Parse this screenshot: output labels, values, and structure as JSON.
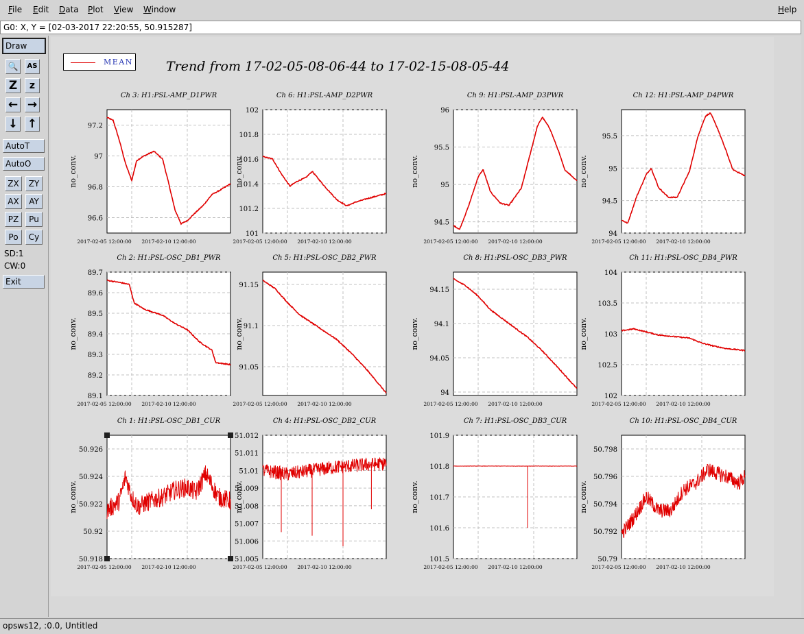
{
  "menubar": {
    "items": [
      {
        "label": "File",
        "u": "F",
        "rest": "ile"
      },
      {
        "label": "Edit",
        "u": "E",
        "rest": "dit"
      },
      {
        "label": "Data",
        "u": "D",
        "rest": "ata"
      },
      {
        "label": "Plot",
        "u": "P",
        "rest": "lot"
      },
      {
        "label": "View",
        "u": "V",
        "rest": "iew"
      },
      {
        "label": "Window",
        "u": "W",
        "rest": "indow"
      }
    ],
    "help": {
      "u": "H",
      "rest": "elp"
    }
  },
  "coord_readout": "G0: X, Y = [02-03-2017 22:20:55, 50.915287]",
  "toolbar": {
    "draw": "Draw",
    "icons": [
      "magnify-icon",
      "text-icon",
      "zoom-out-icon",
      "zoom-in-icon",
      "arrow-left-icon",
      "arrow-right-icon",
      "arrow-down-icon",
      "arrow-up-icon"
    ],
    "icon_glyphs": [
      "🔍",
      "AS",
      "Z",
      "z",
      "←",
      "→",
      "↓",
      "↑"
    ],
    "autot": "AutoT",
    "autoo": "AutoO",
    "pairs": [
      [
        "ZX",
        "ZY"
      ],
      [
        "AX",
        "AY"
      ],
      [
        "PZ",
        "Pu"
      ],
      [
        "Po",
        "Cy"
      ]
    ],
    "sd": "SD:1",
    "cw": "CW:0",
    "exit": "Exit"
  },
  "legend": {
    "label": "MEAN",
    "color": "#e00000"
  },
  "title": "Trend from 17-02-05-08-06-44 to 17-02-15-08-05-44",
  "status": "opsws12, :0.0, Untitled",
  "chart_data": [
    {
      "type": "line",
      "title": "Ch 3: H1:PSL-AMP_D1PWR",
      "ylabel": "no_conv.",
      "ylim": [
        96.5,
        97.3
      ],
      "yticks": [
        "96.6",
        "96.8",
        "97",
        "97.2"
      ],
      "ytick_values": [
        96.6,
        96.8,
        97,
        97.2
      ],
      "xticks": [
        "2017-02-05 12:00:00",
        "2017-02-10 12:00:00"
      ],
      "series": [
        {
          "values": [
            [
              0,
              97.25
            ],
            [
              0.05,
              97.23
            ],
            [
              0.1,
              97.1
            ],
            [
              0.15,
              96.95
            ],
            [
              0.2,
              96.84
            ],
            [
              0.24,
              96.97
            ],
            [
              0.3,
              97.0
            ],
            [
              0.38,
              97.03
            ],
            [
              0.45,
              96.98
            ],
            [
              0.5,
              96.82
            ],
            [
              0.55,
              96.65
            ],
            [
              0.6,
              96.56
            ],
            [
              0.65,
              96.58
            ],
            [
              0.7,
              96.62
            ],
            [
              0.78,
              96.68
            ],
            [
              0.85,
              96.75
            ],
            [
              0.92,
              96.78
            ],
            [
              1,
              96.82
            ]
          ]
        }
      ]
    },
    {
      "type": "line",
      "title": "Ch 6: H1:PSL-AMP_D2PWR",
      "ylabel": "no_conv.",
      "ylim": [
        101,
        102
      ],
      "yticks": [
        "101",
        "101.2",
        "101.4",
        "101.6",
        "101.8",
        "102"
      ],
      "ytick_values": [
        101,
        101.2,
        101.4,
        101.6,
        101.8,
        102
      ],
      "xticks": [
        "2017-02-05 12:00:00",
        "2017-02-10 12:00:00"
      ],
      "series": [
        {
          "values": [
            [
              0,
              101.62
            ],
            [
              0.08,
              101.6
            ],
            [
              0.15,
              101.48
            ],
            [
              0.22,
              101.38
            ],
            [
              0.28,
              101.42
            ],
            [
              0.35,
              101.45
            ],
            [
              0.4,
              101.5
            ],
            [
              0.5,
              101.38
            ],
            [
              0.6,
              101.27
            ],
            [
              0.68,
              101.22
            ],
            [
              0.75,
              101.25
            ],
            [
              0.85,
              101.28
            ],
            [
              1,
              101.32
            ]
          ]
        }
      ]
    },
    {
      "type": "line",
      "title": "Ch 9: H1:PSL-AMP_D3PWR",
      "ylabel": "no_conv.",
      "ylim": [
        94.35,
        96
      ],
      "yticks": [
        "94.5",
        "95",
        "95.5",
        "96"
      ],
      "ytick_values": [
        94.5,
        95,
        95.5,
        96
      ],
      "xticks": [
        "2017-02-05 12:00:00",
        "2017-02-10 12:00:00"
      ],
      "series": [
        {
          "values": [
            [
              0,
              94.45
            ],
            [
              0.05,
              94.4
            ],
            [
              0.12,
              94.7
            ],
            [
              0.2,
              95.1
            ],
            [
              0.24,
              95.2
            ],
            [
              0.3,
              94.9
            ],
            [
              0.38,
              94.75
            ],
            [
              0.45,
              94.72
            ],
            [
              0.55,
              94.95
            ],
            [
              0.62,
              95.4
            ],
            [
              0.68,
              95.78
            ],
            [
              0.72,
              95.9
            ],
            [
              0.78,
              95.75
            ],
            [
              0.85,
              95.45
            ],
            [
              0.9,
              95.2
            ],
            [
              1,
              95.05
            ]
          ]
        }
      ]
    },
    {
      "type": "line",
      "title": "Ch 12: H1:PSL-AMP_D4PWR",
      "ylabel": "no_conv.",
      "ylim": [
        94,
        95.9
      ],
      "yticks": [
        "94",
        "94.5",
        "95",
        "95.5"
      ],
      "ytick_values": [
        94,
        94.5,
        95,
        95.5
      ],
      "xticks": [
        "2017-02-05 12:00:00",
        "2017-02-10 12:00:00"
      ],
      "series": [
        {
          "values": [
            [
              0,
              94.2
            ],
            [
              0.05,
              94.15
            ],
            [
              0.12,
              94.55
            ],
            [
              0.2,
              94.9
            ],
            [
              0.24,
              95.0
            ],
            [
              0.3,
              94.7
            ],
            [
              0.38,
              94.55
            ],
            [
              0.45,
              94.55
            ],
            [
              0.55,
              94.95
            ],
            [
              0.62,
              95.5
            ],
            [
              0.68,
              95.8
            ],
            [
              0.72,
              95.85
            ],
            [
              0.78,
              95.6
            ],
            [
              0.85,
              95.25
            ],
            [
              0.9,
              94.98
            ],
            [
              1,
              94.88
            ]
          ]
        }
      ]
    },
    {
      "type": "line",
      "title": "Ch 2: H1:PSL-OSC_DB1_PWR",
      "ylabel": "no_conv.",
      "ylim": [
        89.1,
        89.7
      ],
      "yticks": [
        "89.1",
        "89.2",
        "89.3",
        "89.4",
        "89.5",
        "89.6",
        "89.7"
      ],
      "ytick_values": [
        89.1,
        89.2,
        89.3,
        89.4,
        89.5,
        89.6,
        89.7
      ],
      "xticks": [
        "2017-02-05 12:00:00",
        "2017-02-10 12:00:00"
      ],
      "series": [
        {
          "values": [
            [
              0,
              89.66
            ],
            [
              0.1,
              89.65
            ],
            [
              0.18,
              89.64
            ],
            [
              0.22,
              89.55
            ],
            [
              0.3,
              89.52
            ],
            [
              0.45,
              89.49
            ],
            [
              0.55,
              89.45
            ],
            [
              0.65,
              89.42
            ],
            [
              0.75,
              89.36
            ],
            [
              0.85,
              89.32
            ],
            [
              0.88,
              89.26
            ],
            [
              1,
              89.25
            ]
          ]
        }
      ]
    },
    {
      "type": "line",
      "title": "Ch 5: H1:PSL-OSC_DB2_PWR",
      "ylabel": "no_conv.",
      "ylim": [
        91.015,
        91.165
      ],
      "yticks": [
        "91.05",
        "91.1",
        "91.15"
      ],
      "ytick_values": [
        91.05,
        91.1,
        91.15
      ],
      "xticks": [
        "2017-02-05 12:00:00",
        "2017-02-10 12:00:00"
      ],
      "series": [
        {
          "values": [
            [
              0,
              91.155
            ],
            [
              0.1,
              91.145
            ],
            [
              0.2,
              91.128
            ],
            [
              0.3,
              91.113
            ],
            [
              0.45,
              91.098
            ],
            [
              0.6,
              91.083
            ],
            [
              0.72,
              91.066
            ],
            [
              0.85,
              91.045
            ],
            [
              0.95,
              91.027
            ],
            [
              1,
              91.018
            ]
          ]
        }
      ]
    },
    {
      "type": "line",
      "title": "Ch 8: H1:PSL-OSC_DB3_PWR",
      "ylabel": "no_conv.",
      "ylim": [
        93.995,
        94.175
      ],
      "yticks": [
        "94",
        "94.05",
        "94.1",
        "94.15"
      ],
      "ytick_values": [
        94,
        94.05,
        94.1,
        94.15
      ],
      "xticks": [
        "2017-02-05 12:00:00",
        "2017-02-10 12:00:00"
      ],
      "series": [
        {
          "values": [
            [
              0,
              94.165
            ],
            [
              0.1,
              94.155
            ],
            [
              0.2,
              94.14
            ],
            [
              0.3,
              94.12
            ],
            [
              0.45,
              94.1
            ],
            [
              0.6,
              94.08
            ],
            [
              0.72,
              94.06
            ],
            [
              0.85,
              94.035
            ],
            [
              1,
              94.005
            ]
          ]
        }
      ]
    },
    {
      "type": "line",
      "title": "Ch 11: H1:PSL-OSC_DB4_PWR",
      "ylabel": "no_conv.",
      "ylim": [
        102,
        104
      ],
      "yticks": [
        "102",
        "102.5",
        "103",
        "103.5",
        "104"
      ],
      "ytick_values": [
        102,
        102.5,
        103,
        103.5,
        104
      ],
      "xticks": [
        "2017-02-05 12:00:00",
        "2017-02-10 12:00:00"
      ],
      "series": [
        {
          "values": [
            [
              0,
              103.05
            ],
            [
              0.1,
              103.08
            ],
            [
              0.2,
              103.03
            ],
            [
              0.3,
              102.98
            ],
            [
              0.45,
              102.95
            ],
            [
              0.55,
              102.93
            ],
            [
              0.65,
              102.85
            ],
            [
              0.75,
              102.8
            ],
            [
              0.85,
              102.76
            ],
            [
              1,
              102.73
            ]
          ]
        }
      ]
    },
    {
      "type": "line",
      "title": "Ch 1: H1:PSL-OSC_DB1_CUR",
      "ylabel": "no_conv.",
      "ylim": [
        50.918,
        50.927
      ],
      "yticks": [
        "50.918",
        "50.92",
        "50.922",
        "50.924",
        "50.926"
      ],
      "ytick_values": [
        50.918,
        50.92,
        50.922,
        50.924,
        50.926
      ],
      "xticks": [
        "2017-02-05 12:00:00",
        "2017-02-10 12:00:00"
      ],
      "noise": 0.0014,
      "spikes": [],
      "series": [
        {
          "values": [
            [
              0,
              50.9215
            ],
            [
              0.1,
              50.9222
            ],
            [
              0.15,
              50.924
            ],
            [
              0.2,
              50.9225
            ],
            [
              0.25,
              50.9218
            ],
            [
              0.35,
              50.9222
            ],
            [
              0.45,
              50.9225
            ],
            [
              0.55,
              50.923
            ],
            [
              0.65,
              50.9232
            ],
            [
              0.72,
              50.9228
            ],
            [
              0.8,
              50.9242
            ],
            [
              0.9,
              50.9225
            ],
            [
              1,
              50.9222
            ]
          ]
        }
      ]
    },
    {
      "type": "line",
      "title": "Ch 4: H1:PSL-OSC_DB2_CUR",
      "ylabel": "no_conv.",
      "ylim": [
        51.005,
        51.012
      ],
      "yticks": [
        "51.005",
        "51.006",
        "51.007",
        "51.008",
        "51.009",
        "51.01",
        "51.011",
        "51.012"
      ],
      "ytick_values": [
        51.005,
        51.006,
        51.007,
        51.008,
        51.009,
        51.01,
        51.011,
        51.012
      ],
      "xticks": [
        "2017-02-05 12:00:00",
        "2017-02-10 12:00:00"
      ],
      "noise": 0.0008,
      "spikes": [
        [
          0.15,
          51.0065
        ],
        [
          0.4,
          51.0063
        ],
        [
          0.65,
          51.0057
        ],
        [
          0.88,
          51.0078
        ]
      ],
      "series": [
        {
          "values": [
            [
              0,
              51.01
            ],
            [
              0.2,
              51.0098
            ],
            [
              0.4,
              51.01
            ],
            [
              0.6,
              51.0102
            ],
            [
              0.8,
              51.0103
            ],
            [
              1,
              51.0104
            ]
          ]
        }
      ]
    },
    {
      "type": "line",
      "title": "Ch 7: H1:PSL-OSC_DB3_CUR",
      "ylabel": "no_conv.",
      "ylim": [
        101.5,
        101.9
      ],
      "yticks": [
        "101.5",
        "101.6",
        "101.7",
        "101.8",
        "101.9"
      ],
      "ytick_values": [
        101.5,
        101.6,
        101.7,
        101.8,
        101.9
      ],
      "xticks": [
        "2017-02-05 12:00:00",
        "2017-02-10 12:00:00"
      ],
      "noise": 0.001,
      "spikes": [
        [
          0.6,
          101.6
        ]
      ],
      "series": [
        {
          "values": [
            [
              0,
              101.8
            ],
            [
              1,
              101.8
            ]
          ]
        }
      ]
    },
    {
      "type": "line",
      "title": "Ch 10: H1:PSL-OSC_DB4_CUR",
      "ylabel": "no_conv.",
      "ylim": [
        50.79,
        50.799
      ],
      "yticks": [
        "50.79",
        "50.792",
        "50.794",
        "50.796",
        "50.798"
      ],
      "ytick_values": [
        50.79,
        50.792,
        50.794,
        50.796,
        50.798
      ],
      "xticks": [
        "2017-02-05 12:00:00",
        "2017-02-10 12:00:00"
      ],
      "noise": 0.0011,
      "spikes": [],
      "series": [
        {
          "values": [
            [
              0,
              50.7918
            ],
            [
              0.1,
              50.793
            ],
            [
              0.2,
              50.7945
            ],
            [
              0.3,
              50.7935
            ],
            [
              0.4,
              50.7935
            ],
            [
              0.5,
              50.795
            ],
            [
              0.6,
              50.7955
            ],
            [
              0.7,
              50.7965
            ],
            [
              0.78,
              50.7962
            ],
            [
              0.85,
              50.796
            ],
            [
              0.95,
              50.7955
            ],
            [
              1,
              50.796
            ]
          ]
        }
      ]
    }
  ]
}
